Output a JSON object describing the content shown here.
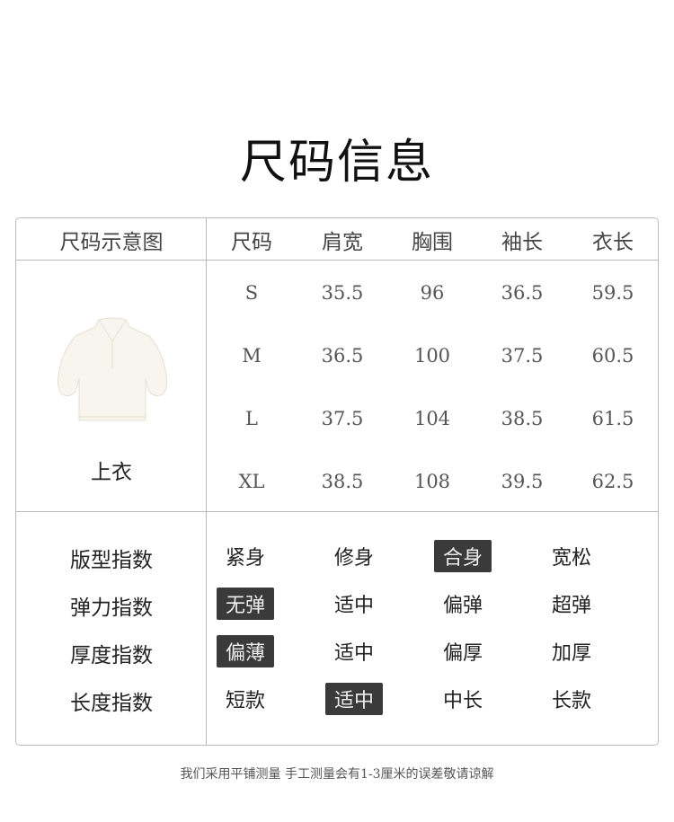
{
  "title": "尺码信息",
  "table": {
    "headers": [
      "尺码示意图",
      "尺码",
      "肩宽",
      "胸围",
      "袖长",
      "衣长"
    ],
    "garment_label": "上衣",
    "rows": [
      [
        "S",
        "35.5",
        "96",
        "36.5",
        "59.5"
      ],
      [
        "M",
        "36.5",
        "100",
        "37.5",
        "60.5"
      ],
      [
        "L",
        "37.5",
        "104",
        "38.5",
        "61.5"
      ],
      [
        "XL",
        "38.5",
        "108",
        "39.5",
        "62.5"
      ]
    ]
  },
  "indices": [
    {
      "label": "版型指数",
      "options": [
        "紧身",
        "修身",
        "合身",
        "宽松"
      ],
      "selected": 2
    },
    {
      "label": "弹力指数",
      "options": [
        "无弹",
        "适中",
        "偏弹",
        "超弹"
      ],
      "selected": 0
    },
    {
      "label": "厚度指数",
      "options": [
        "偏薄",
        "适中",
        "偏厚",
        "加厚"
      ],
      "selected": 0
    },
    {
      "label": "长度指数",
      "options": [
        "短款",
        "适中",
        "中长",
        "长款"
      ],
      "selected": 1
    }
  ],
  "note": "我们采用平铺测量 手工测量会有1-3厘米的误差敬请谅解",
  "colors": {
    "selected_bg": "#3a3a3a",
    "border": "#bbbbbb"
  }
}
